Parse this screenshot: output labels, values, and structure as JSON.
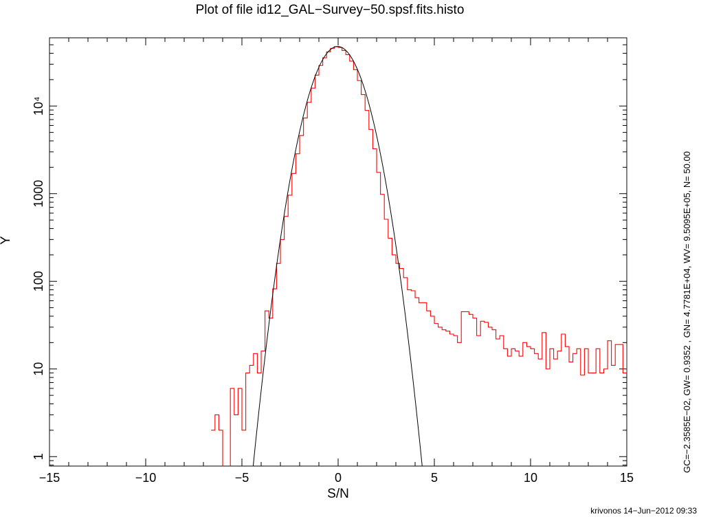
{
  "chart_data": {
    "type": "line",
    "title": "Plot of file id12_GAL−Survey−50.spsf.fits.histo",
    "xlabel": "S/N",
    "ylabel": "Y",
    "xlim": [
      -15,
      15
    ],
    "ylim": [
      0.78,
      60000
    ],
    "yscale": "log",
    "grid": false,
    "x_ticks": [
      -15,
      -10,
      -5,
      0,
      5,
      10,
      15
    ],
    "x_tick_labels": [
      "−15",
      "−10",
      "−5",
      "0",
      "5",
      "10",
      "15"
    ],
    "y_ticks": [
      1,
      10,
      100,
      1000,
      10000
    ],
    "y_tick_labels": [
      "1",
      "10",
      "100",
      "1000",
      "10⁴"
    ],
    "series": [
      {
        "kind": "histogram-step",
        "color": "#ff0000",
        "bin_width": 0.2,
        "x_start": -6.6,
        "values": [
          2,
          3,
          2,
          0.5,
          0.7,
          6,
          3,
          6,
          2,
          9,
          11,
          15,
          9,
          16,
          46,
          38,
          82,
          160,
          300,
          550,
          960,
          1700,
          2850,
          4600,
          7300,
          11000,
          16000,
          22500,
          29000,
          35500,
          41500,
          45500,
          47500,
          46500,
          43000,
          38500,
          32500,
          26000,
          19500,
          13500,
          8900,
          5400,
          3250,
          1750,
          980,
          510,
          310,
          200,
          160,
          140,
          110,
          80,
          78,
          65,
          57,
          57,
          46,
          40,
          33,
          30,
          28,
          27,
          25,
          24,
          20,
          45,
          45,
          42,
          38,
          24,
          35,
          34,
          30,
          28,
          22,
          24,
          17,
          14,
          17,
          16,
          14,
          20,
          18,
          17,
          15,
          13,
          26,
          10,
          17,
          13,
          16,
          25,
          18,
          12,
          15,
          17,
          8.5,
          17,
          9,
          9,
          17,
          9,
          10,
          21,
          11,
          19,
          19,
          9,
          19,
          17,
          8,
          12,
          14,
          16,
          18,
          18,
          17,
          11,
          18,
          18,
          11,
          16,
          17,
          8,
          10,
          12,
          15,
          15,
          21,
          13,
          14,
          13,
          22,
          18,
          14,
          16,
          18
        ],
        "note": "histogram continues to x=15; later bins fluctuate between 11 and 25"
      },
      {
        "kind": "gaussian-fit",
        "color": "#000000",
        "center": -0.023585,
        "sigma": 0.9352,
        "peak": 47781
      }
    ],
    "side_annotation": "GC=−2.3585E−02, GW= 0.9352    , GN= 4.7781E+04, WV= 9.5095E+05,  N=  50.00",
    "footer": "krivonos 14−Jun−2012 09:33"
  }
}
